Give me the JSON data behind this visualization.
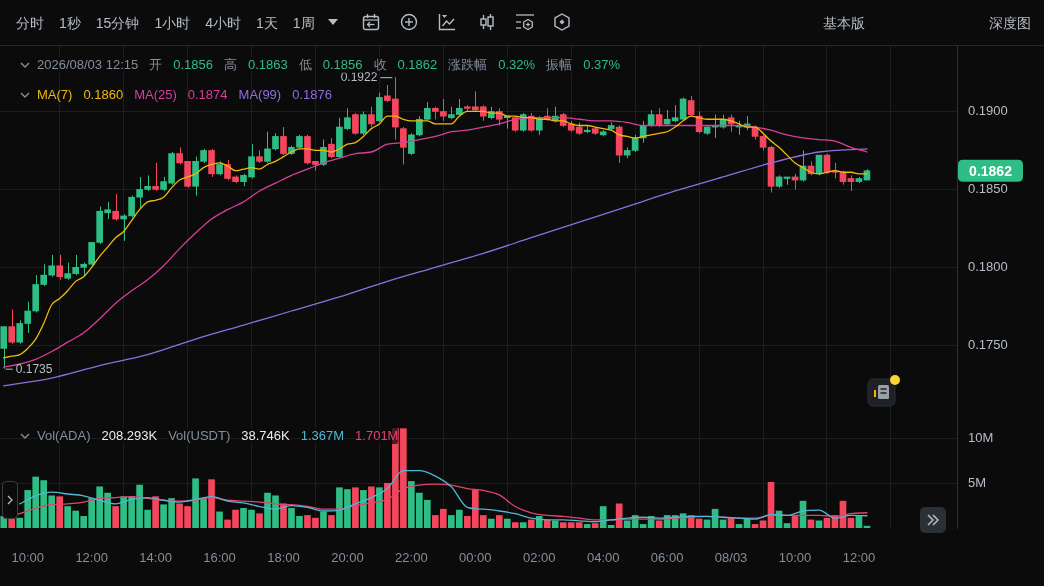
{
  "chart_data": [
    {
      "type": "other",
      "annotations": [
        "分时",
        "1秒",
        "15分钟",
        "1小时",
        "4小时",
        "1天",
        "1周"
      ]
    },
    {
      "type": "other",
      "annotations": [
        "基本版",
        "深度图"
      ]
    },
    {
      "type": "candlestick",
      "x": [
        "2026-08-02T09:15",
        "2026-08-02T09:30",
        "2026-08-02T09:45",
        "2026-08-02T10:00",
        "2026-08-02T10:15",
        "2026-08-02T10:30",
        "2026-08-02T10:45",
        "2026-08-02T11:00",
        "2026-08-02T11:15",
        "2026-08-02T11:30",
        "2026-08-02T11:45",
        "2026-08-02T12:00",
        "2026-08-02T12:15",
        "2026-08-02T12:30",
        "2026-08-02T12:45",
        "2026-08-02T13:00",
        "2026-08-02T13:15",
        "2026-08-02T13:30",
        "2026-08-02T13:45",
        "2026-08-02T14:00",
        "2026-08-02T14:15",
        "2026-08-02T14:30",
        "2026-08-02T14:45",
        "2026-08-02T15:00",
        "2026-08-02T15:15",
        "2026-08-02T15:30",
        "2026-08-02T15:45",
        "2026-08-02T16:00",
        "2026-08-02T16:15",
        "2026-08-02T16:30",
        "2026-08-02T16:45",
        "2026-08-02T17:00",
        "2026-08-02T17:15",
        "2026-08-02T17:30",
        "2026-08-02T17:45",
        "2026-08-02T18:00",
        "2026-08-02T18:15",
        "2026-08-02T18:30",
        "2026-08-02T18:45",
        "2026-08-02T19:00",
        "2026-08-02T19:15",
        "2026-08-02T19:30",
        "2026-08-02T19:45",
        "2026-08-02T20:00",
        "2026-08-02T20:15",
        "2026-08-02T20:30",
        "2026-08-02T20:45",
        "2026-08-02T21:00",
        "2026-08-02T21:15",
        "2026-08-02T21:30",
        "2026-08-02T21:45",
        "2026-08-02T22:00",
        "2026-08-02T22:15",
        "2026-08-02T22:30",
        "2026-08-02T22:45",
        "2026-08-02T23:00",
        "2026-08-02T23:15",
        "2026-08-02T23:30",
        "2026-08-02T23:45",
        "2026-08-03T00:00",
        "2026-08-03T00:15",
        "2026-08-03T00:30",
        "2026-08-03T00:45",
        "2026-08-03T01:00",
        "2026-08-03T01:15",
        "2026-08-03T01:30",
        "2026-08-03T01:45",
        "2026-08-03T02:00",
        "2026-08-03T02:15",
        "2026-08-03T02:30",
        "2026-08-03T02:45",
        "2026-08-03T03:00",
        "2026-08-03T03:15",
        "2026-08-03T03:30",
        "2026-08-03T03:45",
        "2026-08-03T04:00",
        "2026-08-03T04:15",
        "2026-08-03T04:30",
        "2026-08-03T04:45",
        "2026-08-03T05:00",
        "2026-08-03T05:15",
        "2026-08-03T05:30",
        "2026-08-03T05:45",
        "2026-08-03T06:00",
        "2026-08-03T06:15",
        "2026-08-03T06:30",
        "2026-08-03T06:45",
        "2026-08-03T07:00",
        "2026-08-03T07:15",
        "2026-08-03T07:30",
        "2026-08-03T07:45",
        "2026-08-03T08:00",
        "2026-08-03T08:15",
        "2026-08-03T08:30",
        "2026-08-03T08:45",
        "2026-08-03T09:00",
        "2026-08-03T09:15",
        "2026-08-03T09:30",
        "2026-08-03T09:45",
        "2026-08-03T10:00",
        "2026-08-03T10:15",
        "2026-08-03T10:30",
        "2026-08-03T10:45",
        "2026-08-03T11:00",
        "2026-08-03T11:15",
        "2026-08-03T11:30",
        "2026-08-03T11:45",
        "2026-08-03T12:00",
        "2026-08-03T12:15"
      ],
      "ohlc": [
        [
          0.1748,
          0.1762,
          0.1735,
          0.1762
        ],
        [
          0.1762,
          0.1773,
          0.1751,
          0.1752
        ],
        [
          0.1752,
          0.1766,
          0.1751,
          0.1764
        ],
        [
          0.1764,
          0.1778,
          0.1758,
          0.1772
        ],
        [
          0.1772,
          0.1795,
          0.1771,
          0.1789
        ],
        [
          0.1789,
          0.1802,
          0.1788,
          0.1795
        ],
        [
          0.1795,
          0.1808,
          0.1794,
          0.1801
        ],
        [
          0.1801,
          0.1808,
          0.1792,
          0.1794
        ],
        [
          0.1793,
          0.1803,
          0.1792,
          0.1796
        ],
        [
          0.1796,
          0.1808,
          0.1795,
          0.18
        ],
        [
          0.18,
          0.1803,
          0.1794,
          0.1802
        ],
        [
          0.1802,
          0.1816,
          0.1801,
          0.1816
        ],
        [
          0.1816,
          0.1839,
          0.1815,
          0.1836
        ],
        [
          0.1835,
          0.1842,
          0.1831,
          0.1837
        ],
        [
          0.1836,
          0.1847,
          0.183,
          0.1831
        ],
        [
          0.1831,
          0.1834,
          0.1817,
          0.1833
        ],
        [
          0.1833,
          0.1846,
          0.1832,
          0.1845
        ],
        [
          0.1845,
          0.1858,
          0.1838,
          0.185
        ],
        [
          0.185,
          0.1859,
          0.1849,
          0.1852
        ],
        [
          0.1852,
          0.1867,
          0.1849,
          0.185
        ],
        [
          0.185,
          0.1858,
          0.1849,
          0.1855
        ],
        [
          0.1854,
          0.1874,
          0.1853,
          0.1873
        ],
        [
          0.1873,
          0.1877,
          0.1866,
          0.1867
        ],
        [
          0.1868,
          0.1868,
          0.1851,
          0.1852
        ],
        [
          0.1852,
          0.1871,
          0.1846,
          0.1868
        ],
        [
          0.1868,
          0.1876,
          0.1867,
          0.1875
        ],
        [
          0.1875,
          0.1876,
          0.1858,
          0.186
        ],
        [
          0.186,
          0.1868,
          0.1859,
          0.1866
        ],
        [
          0.1866,
          0.1869,
          0.1856,
          0.1857
        ],
        [
          0.1858,
          0.1859,
          0.1854,
          0.1855
        ],
        [
          0.1855,
          0.186,
          0.1852,
          0.1859
        ],
        [
          0.1858,
          0.1879,
          0.1857,
          0.1871
        ],
        [
          0.1871,
          0.1875,
          0.1867,
          0.1868
        ],
        [
          0.1868,
          0.1887,
          0.1867,
          0.1876
        ],
        [
          0.1876,
          0.1886,
          0.1875,
          0.1884
        ],
        [
          0.1884,
          0.189,
          0.1872,
          0.1873
        ],
        [
          0.1873,
          0.1878,
          0.1872,
          0.1877
        ],
        [
          0.1877,
          0.1885,
          0.1876,
          0.1884
        ],
        [
          0.1884,
          0.1885,
          0.1866,
          0.1867
        ],
        [
          0.1868,
          0.1868,
          0.1862,
          0.1866
        ],
        [
          0.1866,
          0.1882,
          0.1865,
          0.1877
        ],
        [
          0.1879,
          0.1883,
          0.187,
          0.1871
        ],
        [
          0.1871,
          0.1896,
          0.187,
          0.189
        ],
        [
          0.1889,
          0.1902,
          0.1888,
          0.1896
        ],
        [
          0.1898,
          0.1899,
          0.1885,
          0.1886
        ],
        [
          0.1886,
          0.19,
          0.1885,
          0.1898
        ],
        [
          0.1898,
          0.1903,
          0.189,
          0.1892
        ],
        [
          0.1894,
          0.1912,
          0.1893,
          0.1909
        ],
        [
          0.191,
          0.1917,
          0.1906,
          0.1907
        ],
        [
          0.1908,
          0.1922,
          0.1882,
          0.189
        ],
        [
          0.1889,
          0.189,
          0.1866,
          0.1877
        ],
        [
          0.1873,
          0.1886,
          0.1872,
          0.1885
        ],
        [
          0.1885,
          0.1897,
          0.1884,
          0.1895
        ],
        [
          0.1895,
          0.1906,
          0.1894,
          0.1902
        ],
        [
          0.1902,
          0.1903,
          0.1895,
          0.19
        ],
        [
          0.19,
          0.1908,
          0.1894,
          0.1897
        ],
        [
          0.1896,
          0.1903,
          0.1895,
          0.1898
        ],
        [
          0.1898,
          0.1908,
          0.1897,
          0.1902
        ],
        [
          0.1903,
          0.1904,
          0.19,
          0.1902
        ],
        [
          0.1903,
          0.1913,
          0.19,
          0.1901
        ],
        [
          0.1903,
          0.1904,
          0.1894,
          0.1897
        ],
        [
          0.1896,
          0.1903,
          0.1895,
          0.19
        ],
        [
          0.19,
          0.1902,
          0.1891,
          0.1895
        ],
        [
          0.1896,
          0.1897,
          0.1889,
          0.1897
        ],
        [
          0.1896,
          0.1897,
          0.1887,
          0.1888
        ],
        [
          0.1888,
          0.1899,
          0.1887,
          0.1898
        ],
        [
          0.1897,
          0.1899,
          0.1887,
          0.1888
        ],
        [
          0.1888,
          0.1897,
          0.1885,
          0.1896
        ],
        [
          0.1897,
          0.1902,
          0.1894,
          0.1895
        ],
        [
          0.1894,
          0.1903,
          0.1893,
          0.1897
        ],
        [
          0.1898,
          0.1899,
          0.189,
          0.1891
        ],
        [
          0.1892,
          0.1894,
          0.1887,
          0.1888
        ],
        [
          0.189,
          0.1893,
          0.1885,
          0.1886
        ],
        [
          0.1887,
          0.1891,
          0.1886,
          0.1888
        ],
        [
          0.1889,
          0.189,
          0.1885,
          0.1886
        ],
        [
          0.1885,
          0.1888,
          0.1884,
          0.1887
        ],
        [
          0.1889,
          0.1893,
          0.1888,
          0.1891
        ],
        [
          0.189,
          0.1891,
          0.1867,
          0.1872
        ],
        [
          0.1872,
          0.1877,
          0.187,
          0.1875
        ],
        [
          0.1875,
          0.1885,
          0.1874,
          0.1883
        ],
        [
          0.1883,
          0.1894,
          0.188,
          0.1891
        ],
        [
          0.1891,
          0.1901,
          0.189,
          0.1898
        ],
        [
          0.1898,
          0.1902,
          0.189,
          0.1891
        ],
        [
          0.1892,
          0.1901,
          0.1891,
          0.1895
        ],
        [
          0.1894,
          0.1904,
          0.1893,
          0.1896
        ],
        [
          0.1895,
          0.1909,
          0.1894,
          0.1908
        ],
        [
          0.1907,
          0.191,
          0.1897,
          0.1898
        ],
        [
          0.1897,
          0.19,
          0.1886,
          0.1887
        ],
        [
          0.1886,
          0.1891,
          0.1885,
          0.189
        ],
        [
          0.189,
          0.1898,
          0.1883,
          0.1891
        ],
        [
          0.189,
          0.1898,
          0.1889,
          0.1895
        ],
        [
          0.1896,
          0.1898,
          0.1887,
          0.1892
        ],
        [
          0.189,
          0.1894,
          0.1885,
          0.1891
        ],
        [
          0.189,
          0.1897,
          0.1888,
          0.1892
        ],
        [
          0.189,
          0.1891,
          0.1882,
          0.1884
        ],
        [
          0.1884,
          0.1885,
          0.1875,
          0.1877
        ],
        [
          0.1877,
          0.1878,
          0.1848,
          0.1852
        ],
        [
          0.1852,
          0.1859,
          0.1851,
          0.1858
        ],
        [
          0.1857,
          0.1858,
          0.1853,
          0.1858
        ],
        [
          0.1858,
          0.186,
          0.185,
          0.1856
        ],
        [
          0.1856,
          0.1875,
          0.1855,
          0.1865
        ],
        [
          0.1865,
          0.1868,
          0.1859,
          0.186
        ],
        [
          0.186,
          0.1872,
          0.1859,
          0.1872
        ],
        [
          0.1872,
          0.1873,
          0.186,
          0.1861
        ],
        [
          0.1862,
          0.1867,
          0.1857,
          0.1861
        ],
        [
          0.1861,
          0.1862,
          0.1853,
          0.1855
        ],
        [
          0.1857,
          0.1859,
          0.1849,
          0.1855
        ],
        [
          0.1855,
          0.1858,
          0.1854,
          0.1857
        ],
        [
          0.1856,
          0.1863,
          0.1856,
          0.1862
        ]
      ],
      "series": [
        {
          "type": "line",
          "name": "MA(7)",
          "color": "#f0b90b",
          "values": [
            0.1742,
            0.1743,
            0.1744,
            0.1748,
            0.1754,
            0.1764,
            0.1776,
            0.178,
            0.1785,
            0.1791,
            0.1794,
            0.18,
            0.1807,
            0.1813,
            0.1819,
            0.1823,
            0.183,
            0.1837,
            0.1842,
            0.1843,
            0.1845,
            0.1851,
            0.1856,
            0.1858,
            0.186,
            0.1864,
            0.1866,
            0.1867,
            0.1865,
            0.1862,
            0.1863,
            0.1864,
            0.1863,
            0.1866,
            0.1868,
            0.1871,
            0.1874,
            0.1876,
            0.1876,
            0.1875,
            0.1875,
            0.1874,
            0.1876,
            0.1879,
            0.188,
            0.1884,
            0.1889,
            0.1892,
            0.1897,
            0.1897,
            0.1895,
            0.1894,
            0.1894,
            0.1894,
            0.1892,
            0.1892,
            0.1892,
            0.1897,
            0.19,
            0.19,
            0.19,
            0.1899,
            0.1899,
            0.1897,
            0.1897,
            0.1896,
            0.1896,
            0.1895,
            0.1895,
            0.1894,
            0.1894,
            0.1892,
            0.1891,
            0.1891,
            0.189,
            0.1889,
            0.1888,
            0.1885,
            0.1884,
            0.1883,
            0.1884,
            0.1885,
            0.1886,
            0.1887,
            0.189,
            0.1894,
            0.1897,
            0.1896,
            0.1895,
            0.1895,
            0.1895,
            0.1894,
            0.1892,
            0.189,
            0.189,
            0.1886,
            0.1881,
            0.1877,
            0.1872,
            0.1867,
            0.1864,
            0.1861,
            0.186,
            0.1861,
            0.1862,
            0.1861,
            0.1861,
            0.186,
            0.186
          ]
        },
        {
          "type": "line",
          "name": "MA(25)",
          "color": "#d63f9b",
          "x": [
            "2026-08-02T09:15",
            "2026-08-02T09:45",
            "2026-08-02T10:15",
            "2026-08-02T10:45",
            "2026-08-02T11:15",
            "2026-08-02T11:45",
            "2026-08-02T12:15",
            "2026-08-02T12:45",
            "2026-08-02T13:15",
            "2026-08-02T13:45",
            "2026-08-02T14:15",
            "2026-08-02T14:45",
            "2026-08-02T15:15",
            "2026-08-02T15:45",
            "2026-08-02T16:15",
            "2026-08-02T16:45",
            "2026-08-02T17:15",
            "2026-08-02T17:45",
            "2026-08-02T18:15",
            "2026-08-02T18:45",
            "2026-08-02T19:15",
            "2026-08-02T19:45",
            "2026-08-02T20:15",
            "2026-08-02T20:45",
            "2026-08-02T21:15",
            "2026-08-02T21:45",
            "2026-08-02T22:15",
            "2026-08-02T22:45",
            "2026-08-02T23:15",
            "2026-08-02T23:45",
            "2026-08-03T00:15",
            "2026-08-03T00:45",
            "2026-08-03T01:15",
            "2026-08-03T01:45",
            "2026-08-03T02:15",
            "2026-08-03T02:45",
            "2026-08-03T03:15",
            "2026-08-03T03:45",
            "2026-08-03T04:15",
            "2026-08-03T04:45",
            "2026-08-03T05:15",
            "2026-08-03T05:45",
            "2026-08-03T06:15",
            "2026-08-03T06:45",
            "2026-08-03T07:15",
            "2026-08-03T07:45",
            "2026-08-03T08:15",
            "2026-08-03T08:45",
            "2026-08-03T09:15",
            "2026-08-03T09:45",
            "2026-08-03T10:15",
            "2026-08-03T10:45",
            "2026-08-03T11:15",
            "2026-08-03T11:45",
            "2026-08-03T12:15"
          ],
          "values": [
            0.1736,
            0.1738,
            0.1741,
            0.1746,
            0.1752,
            0.1758,
            0.1767,
            0.1777,
            0.1785,
            0.1792,
            0.1801,
            0.1812,
            0.1822,
            0.1831,
            0.1837,
            0.1842,
            0.1849,
            0.1854,
            0.1859,
            0.1863,
            0.1867,
            0.187,
            0.1873,
            0.1874,
            0.1879,
            0.188,
            0.1882,
            0.1884,
            0.1887,
            0.1888,
            0.189,
            0.1892,
            0.1895,
            0.1896,
            0.1896,
            0.1896,
            0.1895,
            0.1894,
            0.1894,
            0.1893,
            0.1891,
            0.1891,
            0.1891,
            0.1891,
            0.1891,
            0.1891,
            0.1891,
            0.189,
            0.1888,
            0.1885,
            0.1883,
            0.1882,
            0.1881,
            0.1877,
            0.1874
          ]
        },
        {
          "type": "line",
          "name": "MA(99)",
          "color": "#8f6ee0",
          "x": [
            "2026-08-02T09:15",
            "2026-08-02T10:45",
            "2026-08-02T12:15",
            "2026-08-02T13:45",
            "2026-08-02T15:15",
            "2026-08-02T16:45",
            "2026-08-02T18:15",
            "2026-08-02T19:45",
            "2026-08-02T21:15",
            "2026-08-02T22:45",
            "2026-08-03T00:15",
            "2026-08-03T01:45",
            "2026-08-03T03:15",
            "2026-08-03T04:45",
            "2026-08-03T06:15",
            "2026-08-03T07:45",
            "2026-08-03T09:15",
            "2026-08-03T10:45",
            "2026-08-03T12:15"
          ],
          "values": [
            0.1724,
            0.1729,
            0.1737,
            0.1744,
            0.1754,
            0.1763,
            0.1772,
            0.1781,
            0.1791,
            0.18,
            0.1809,
            0.1819,
            0.1829,
            0.1839,
            0.1849,
            0.1858,
            0.1867,
            0.1874,
            0.1876
          ]
        }
      ],
      "xlim": [
        "2026-08-02T09:08",
        "2026-08-03T15:04"
      ],
      "xticks": [
        {
          "value": "2026-08-02T10:00",
          "label": null
        },
        {
          "value": "2026-08-02T12:00",
          "label": null
        },
        {
          "value": "2026-08-02T14:00",
          "label": null
        },
        {
          "value": "2026-08-02T16:00",
          "label": null
        },
        {
          "value": "2026-08-02T18:00",
          "label": null
        },
        {
          "value": "2026-08-02T20:00",
          "label": null
        },
        {
          "value": "2026-08-02T22:00",
          "label": null
        },
        {
          "value": "2026-08-03T00:00",
          "label": null
        },
        {
          "value": "2026-08-03T02:00",
          "label": null
        },
        {
          "value": "2026-08-03T04:00",
          "label": null
        },
        {
          "value": "2026-08-03T06:00",
          "label": null
        },
        {
          "value": "2026-08-03T08:00",
          "label": null
        },
        {
          "value": "2026-08-03T10:00",
          "label": null
        },
        {
          "value": "2026-08-03T12:00",
          "label": null
        }
      ],
      "ylim": [
        0.1704,
        0.1942
      ],
      "yticks": [
        {
          "value": 0.175,
          "label": "0.1750"
        },
        {
          "value": 0.18,
          "label": "0.1800"
        },
        {
          "value": 0.185,
          "label": "0.1850"
        },
        {
          "value": 0.19,
          "label": "0.1900"
        }
      ],
      "grid": true,
      "legend": "top left",
      "tick_labels": "y",
      "annotations": [
        "2026/08/03 12:15",
        "开",
        "0.1856",
        "高",
        "0.1863",
        "低",
        "0.1856",
        "收",
        "0.1862",
        "涨跌幅",
        "0.32%",
        "振幅",
        "0.37%",
        "0.1860",
        "0.1874",
        "0.1876",
        "0.1862",
        {
          "text": "0.1922",
          "x": "2026-08-02T21:30",
          "y": 0.1922
        },
        {
          "text": "0.1735",
          "x": "2026-08-02T09:15",
          "y": 0.1735
        }
      ]
    },
    {
      "type": "bar",
      "x": [
        "2026-08-02T09:15",
        "2026-08-02T09:30",
        "2026-08-02T09:45",
        "2026-08-02T10:00",
        "2026-08-02T10:15",
        "2026-08-02T10:30",
        "2026-08-02T10:45",
        "2026-08-02T11:00",
        "2026-08-02T11:15",
        "2026-08-02T11:30",
        "2026-08-02T11:45",
        "2026-08-02T12:00",
        "2026-08-02T12:15",
        "2026-08-02T12:30",
        "2026-08-02T12:45",
        "2026-08-02T13:00",
        "2026-08-02T13:15",
        "2026-08-02T13:30",
        "2026-08-02T13:45",
        "2026-08-02T14:00",
        "2026-08-02T14:15",
        "2026-08-02T14:30",
        "2026-08-02T14:45",
        "2026-08-02T15:00",
        "2026-08-02T15:15",
        "2026-08-02T15:30",
        "2026-08-02T15:45",
        "2026-08-02T16:00",
        "2026-08-02T16:15",
        "2026-08-02T16:30",
        "2026-08-02T16:45",
        "2026-08-02T17:00",
        "2026-08-02T17:15",
        "2026-08-02T17:30",
        "2026-08-02T17:45",
        "2026-08-02T18:00",
        "2026-08-02T18:15",
        "2026-08-02T18:30",
        "2026-08-02T18:45",
        "2026-08-02T19:00",
        "2026-08-02T19:15",
        "2026-08-02T19:30",
        "2026-08-02T19:45",
        "2026-08-02T20:00",
        "2026-08-02T20:15",
        "2026-08-02T20:30",
        "2026-08-02T20:45",
        "2026-08-02T21:00",
        "2026-08-02T21:15",
        "2026-08-02T21:30",
        "2026-08-02T21:45",
        "2026-08-02T22:00",
        "2026-08-02T22:15",
        "2026-08-02T22:30",
        "2026-08-02T22:45",
        "2026-08-02T23:00",
        "2026-08-02T23:15",
        "2026-08-02T23:30",
        "2026-08-02T23:45",
        "2026-08-03T00:00",
        "2026-08-03T00:15",
        "2026-08-03T00:30",
        "2026-08-03T00:45",
        "2026-08-03T01:00",
        "2026-08-03T01:15",
        "2026-08-03T01:30",
        "2026-08-03T01:45",
        "2026-08-03T02:00",
        "2026-08-03T02:15",
        "2026-08-03T02:30",
        "2026-08-03T02:45",
        "2026-08-03T03:00",
        "2026-08-03T03:15",
        "2026-08-03T03:30",
        "2026-08-03T03:45",
        "2026-08-03T04:00",
        "2026-08-03T04:15",
        "2026-08-03T04:30",
        "2026-08-03T04:45",
        "2026-08-03T05:00",
        "2026-08-03T05:15",
        "2026-08-03T05:30",
        "2026-08-03T05:45",
        "2026-08-03T06:00",
        "2026-08-03T06:15",
        "2026-08-03T06:30",
        "2026-08-03T06:45",
        "2026-08-03T07:00",
        "2026-08-03T07:15",
        "2026-08-03T07:30",
        "2026-08-03T07:45",
        "2026-08-03T08:00",
        "2026-08-03T08:15",
        "2026-08-03T08:30",
        "2026-08-03T08:45",
        "2026-08-03T09:00",
        "2026-08-03T09:15",
        "2026-08-03T09:30",
        "2026-08-03T09:45",
        "2026-08-03T10:00",
        "2026-08-03T10:15",
        "2026-08-03T10:30",
        "2026-08-03T10:45",
        "2026-08-03T11:00",
        "2026-08-03T11:15",
        "2026-08-03T11:30",
        "2026-08-03T11:45",
        "2026-08-03T12:00",
        "2026-08-03T12:15"
      ],
      "series": [
        {
          "values": [
            1300000,
            1100000,
            1100000,
            4200000,
            5700000,
            5300000,
            3600000,
            3500000,
            2400000,
            1900000,
            1300000,
            3300000,
            4600000,
            3900000,
            2400000,
            3500000,
            3500000,
            4800000,
            2000000,
            3500000,
            2600000,
            3300000,
            2700000,
            2400000,
            5500000,
            3300000,
            5400000,
            1800000,
            900000,
            2000000,
            2200000,
            2000000,
            1600000,
            3900000,
            3600000,
            2700000,
            2200000,
            1300000,
            1400000,
            1100000,
            1800000,
            1400000,
            4500000,
            4300000,
            4500000,
            4200000,
            4600000,
            4500000,
            5000000,
            11100000,
            11100000,
            5200000,
            3900000,
            3100000,
            1400000,
            2100000,
            1400000,
            2000000,
            1300000,
            4200000,
            1400000,
            1000000,
            1400000,
            1000000,
            600000,
            600000,
            900000,
            1300000,
            900000,
            800000,
            600000,
            600000,
            600000,
            400000,
            500000,
            2400000,
            300000,
            2700000,
            800000,
            1400000,
            400000,
            1300000,
            800000,
            1400000,
            1400000,
            1600000,
            1400000,
            1000000,
            900000,
            2100000,
            900000,
            1100000,
            400000,
            1000000,
            400000,
            800000,
            5100000,
            1900000,
            500000,
            1300000,
            3000000,
            900000,
            800000,
            1100000,
            1400000,
            3000000,
            1100000,
            1300000,
            208293
          ],
          "colors": [
            "#2ebd85",
            "#f6465d",
            "#2ebd85",
            "#2ebd85",
            "#2ebd85",
            "#2ebd85",
            "#2ebd85",
            "#f6465d",
            "#2ebd85",
            "#2ebd85",
            "#2ebd85",
            "#2ebd85",
            "#2ebd85",
            "#2ebd85",
            "#f6465d",
            "#2ebd85",
            "#2ebd85",
            "#2ebd85",
            "#2ebd85",
            "#f6465d",
            "#2ebd85",
            "#2ebd85",
            "#f6465d",
            "#f6465d",
            "#2ebd85",
            "#2ebd85",
            "#f6465d",
            "#2ebd85",
            "#f6465d",
            "#f6465d",
            "#2ebd85",
            "#2ebd85",
            "#f6465d",
            "#2ebd85",
            "#2ebd85",
            "#f6465d",
            "#2ebd85",
            "#2ebd85",
            "#f6465d",
            "#f6465d",
            "#2ebd85",
            "#f6465d",
            "#2ebd85",
            "#2ebd85",
            "#f6465d",
            "#2ebd85",
            "#f6465d",
            "#2ebd85",
            "#f6465d",
            "#f6465d",
            "#f6465d",
            "#2ebd85",
            "#2ebd85",
            "#2ebd85",
            "#f6465d",
            "#f6465d",
            "#2ebd85",
            "#2ebd85",
            "#f6465d",
            "#f6465d",
            "#f6465d",
            "#2ebd85",
            "#f6465d",
            "#2ebd85",
            "#f6465d",
            "#2ebd85",
            "#f6465d",
            "#2ebd85",
            "#f6465d",
            "#2ebd85",
            "#f6465d",
            "#f6465d",
            "#f6465d",
            "#2ebd85",
            "#f6465d",
            "#2ebd85",
            "#2ebd85",
            "#f6465d",
            "#2ebd85",
            "#2ebd85",
            "#2ebd85",
            "#2ebd85",
            "#f6465d",
            "#2ebd85",
            "#2ebd85",
            "#2ebd85",
            "#f6465d",
            "#f6465d",
            "#2ebd85",
            "#2ebd85",
            "#2ebd85",
            "#f6465d",
            "#2ebd85",
            "#2ebd85",
            "#f6465d",
            "#f6465d",
            "#f6465d",
            "#2ebd85",
            "#2ebd85",
            "#f6465d",
            "#2ebd85",
            "#f6465d",
            "#2ebd85",
            "#f6465d",
            "#f6465d",
            "#f6465d",
            "#f6465d",
            "#2ebd85",
            "#2ebd85"
          ]
        },
        {
          "type": "line",
          "color": "#4fb8d6",
          "x": [
            "2026-08-02T09:45",
            "2026-08-02T10:15",
            "2026-08-02T10:45",
            "2026-08-02T11:15",
            "2026-08-02T11:45",
            "2026-08-02T12:15",
            "2026-08-02T12:45",
            "2026-08-02T13:15",
            "2026-08-02T13:45",
            "2026-08-02T14:15",
            "2026-08-02T14:45",
            "2026-08-02T15:15",
            "2026-08-02T15:45",
            "2026-08-02T16:15",
            "2026-08-02T16:45",
            "2026-08-02T17:15",
            "2026-08-02T17:45",
            "2026-08-02T18:15",
            "2026-08-02T18:45",
            "2026-08-02T19:15",
            "2026-08-02T19:45",
            "2026-08-02T20:15",
            "2026-08-02T20:45",
            "2026-08-02T21:15",
            "2026-08-02T21:45",
            "2026-08-02T22:15",
            "2026-08-02T22:45",
            "2026-08-02T23:15",
            "2026-08-02T23:45",
            "2026-08-03T00:15",
            "2026-08-03T00:45",
            "2026-08-03T01:15",
            "2026-08-03T01:45",
            "2026-08-03T02:15",
            "2026-08-03T02:45",
            "2026-08-03T03:15",
            "2026-08-03T03:45",
            "2026-08-03T04:15",
            "2026-08-03T04:45",
            "2026-08-03T05:15",
            "2026-08-03T05:45",
            "2026-08-03T06:15",
            "2026-08-03T06:45",
            "2026-08-03T07:15",
            "2026-08-03T07:45",
            "2026-08-03T08:15",
            "2026-08-03T08:45",
            "2026-08-03T09:15",
            "2026-08-03T09:45",
            "2026-08-03T10:15",
            "2026-08-03T10:45",
            "2026-08-03T11:15",
            "2026-08-03T11:45",
            "2026-08-03T12:15"
          ],
          "values": [
            2700000,
            3600000,
            4000000,
            3800000,
            3600000,
            3100000,
            2700000,
            3200000,
            3400000,
            3100000,
            2900000,
            3200000,
            3500000,
            3000000,
            2800000,
            2400000,
            2100000,
            2500000,
            2300000,
            1900000,
            2000000,
            2700000,
            3400000,
            4400000,
            6400000,
            6400000,
            5800000,
            4600000,
            2300000,
            2100000,
            1900000,
            1600000,
            1100000,
            900000,
            900000,
            800000,
            700000,
            900000,
            1100000,
            1200000,
            1100000,
            1200000,
            1300000,
            1300000,
            1200000,
            1100000,
            1000000,
            1500000,
            1400000,
            1900000,
            2000000,
            1100000,
            1400000,
            1367000
          ]
        },
        {
          "type": "line",
          "color": "#e0456e",
          "x": [
            "2026-08-02T09:15",
            "2026-08-02T09:45",
            "2026-08-02T10:15",
            "2026-08-02T10:45",
            "2026-08-02T11:15",
            "2026-08-02T11:45",
            "2026-08-02T12:15",
            "2026-08-02T12:45",
            "2026-08-02T13:15",
            "2026-08-02T13:45",
            "2026-08-02T14:15",
            "2026-08-02T14:45",
            "2026-08-02T15:15",
            "2026-08-02T15:45",
            "2026-08-02T16:15",
            "2026-08-02T16:45",
            "2026-08-02T17:15",
            "2026-08-02T17:45",
            "2026-08-02T18:15",
            "2026-08-02T18:45",
            "2026-08-02T19:15",
            "2026-08-02T19:45",
            "2026-08-02T20:15",
            "2026-08-02T20:45",
            "2026-08-02T21:15",
            "2026-08-02T21:45",
            "2026-08-02T22:15",
            "2026-08-02T22:45",
            "2026-08-02T23:15",
            "2026-08-02T23:45",
            "2026-08-03T00:15",
            "2026-08-03T00:45",
            "2026-08-03T01:15",
            "2026-08-03T01:45",
            "2026-08-03T02:15",
            "2026-08-03T02:45",
            "2026-08-03T03:15",
            "2026-08-03T03:45",
            "2026-08-03T04:15",
            "2026-08-03T04:45",
            "2026-08-03T05:15",
            "2026-08-03T05:45",
            "2026-08-03T06:15",
            "2026-08-03T06:45",
            "2026-08-03T07:15",
            "2026-08-03T07:45",
            "2026-08-03T08:15",
            "2026-08-03T08:45",
            "2026-08-03T09:15",
            "2026-08-03T09:45",
            "2026-08-03T10:15",
            "2026-08-03T10:45",
            "2026-08-03T11:15",
            "2026-08-03T11:45",
            "2026-08-03T12:15"
          ],
          "values": [
            1000000,
            1600000,
            2200000,
            2600000,
            2700000,
            2900000,
            3300000,
            3400000,
            3500000,
            3300000,
            3100000,
            3000000,
            3100000,
            3400000,
            3100000,
            3000000,
            2900000,
            2700000,
            2600000,
            2400000,
            2100000,
            2100000,
            2500000,
            2800000,
            3200000,
            4400000,
            4800000,
            4900000,
            4800000,
            4400000,
            4200000,
            3700000,
            2400000,
            1700000,
            1400000,
            1300000,
            1100000,
            900000,
            900000,
            1000000,
            1000000,
            1000000,
            1100000,
            1200000,
            1300000,
            1200000,
            1100000,
            1100000,
            1400000,
            1400000,
            1400000,
            1400000,
            1300000,
            1600000,
            1701000
          ]
        }
      ],
      "xlim": [
        "2026-08-02T09:08",
        "2026-08-03T15:04"
      ],
      "xticks": [
        {
          "value": "2026-08-02T10:00",
          "label": "10:00"
        },
        {
          "value": "2026-08-02T12:00",
          "label": "12:00"
        },
        {
          "value": "2026-08-02T14:00",
          "label": "14:00"
        },
        {
          "value": "2026-08-02T16:00",
          "label": "16:00"
        },
        {
          "value": "2026-08-02T18:00",
          "label": "18:00"
        },
        {
          "value": "2026-08-02T20:00",
          "label": "20:00"
        },
        {
          "value": "2026-08-02T22:00",
          "label": "22:00"
        },
        {
          "value": "2026-08-03T00:00",
          "label": "00:00"
        },
        {
          "value": "2026-08-03T02:00",
          "label": "02:00"
        },
        {
          "value": "2026-08-03T04:00",
          "label": "04:00"
        },
        {
          "value": "2026-08-03T06:00",
          "label": "06:00"
        },
        {
          "value": "2026-08-03T08:00",
          "label": "08/03"
        },
        {
          "value": "2026-08-03T10:00",
          "label": "10:00"
        },
        {
          "value": "2026-08-03T12:00",
          "label": "12:00"
        }
      ],
      "ylim": [
        0,
        12400000
      ],
      "yticks": [
        {
          "value": 5000000,
          "label": "5M"
        },
        {
          "value": 10000000,
          "label": "10M"
        }
      ],
      "grid": true,
      "annotations": [
        "Vol(ADA)",
        "208.293K",
        "Vol(USDT)",
        "38.746K",
        "1.367M",
        "1.701M"
      ]
    }
  ]
}
